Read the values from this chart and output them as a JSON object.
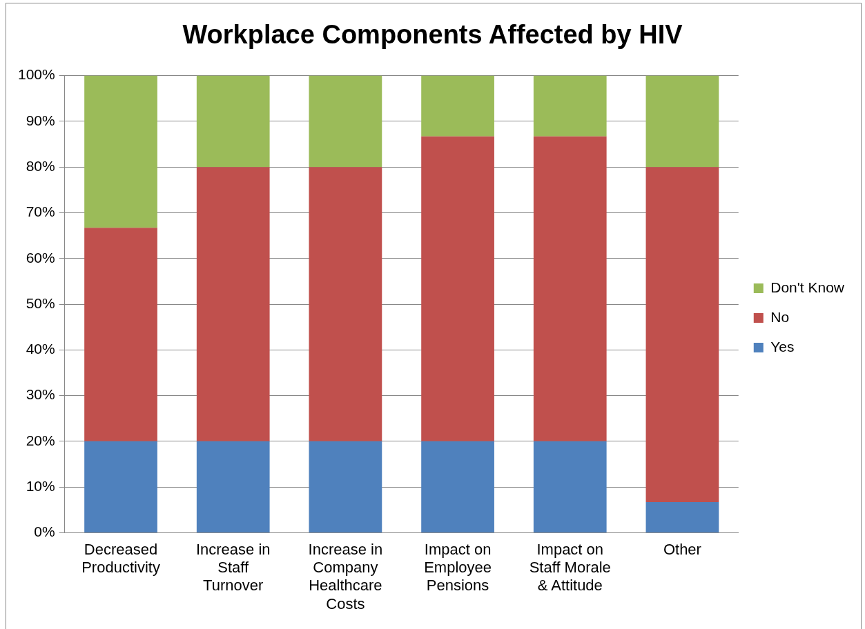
{
  "chart_data": {
    "type": "bar",
    "title": "Workplace Components Affected by HIV",
    "stacked": true,
    "categories": [
      "Decreased Productivity",
      "Increase in Staff Turnover",
      "Increase in Company Healthcare Costs",
      "Impact on Employee Pensions",
      "Impact on Staff Morale & Attitude",
      "Other"
    ],
    "series": [
      {
        "name": "Yes",
        "color": "#4f81bd",
        "values": [
          20,
          20,
          20,
          20,
          20,
          6.7
        ]
      },
      {
        "name": "No",
        "color": "#c0504d",
        "values": [
          46.7,
          60,
          60,
          66.7,
          66.7,
          73.3
        ]
      },
      {
        "name": "Don't Know",
        "color": "#9bbb59",
        "values": [
          33.3,
          20,
          20,
          13.3,
          13.3,
          20
        ]
      }
    ],
    "ylim": [
      0,
      100
    ],
    "yticks": [
      {
        "value": 0,
        "label": "0%"
      },
      {
        "value": 10,
        "label": "10%"
      },
      {
        "value": 20,
        "label": "20%"
      },
      {
        "value": 30,
        "label": "30%"
      },
      {
        "value": 40,
        "label": "40%"
      },
      {
        "value": 50,
        "label": "50%"
      },
      {
        "value": 60,
        "label": "60%"
      },
      {
        "value": 70,
        "label": "70%"
      },
      {
        "value": 80,
        "label": "80%"
      },
      {
        "value": 90,
        "label": "90%"
      },
      {
        "value": 100,
        "label": "100%"
      }
    ],
    "grid": "y",
    "legend": "right"
  }
}
